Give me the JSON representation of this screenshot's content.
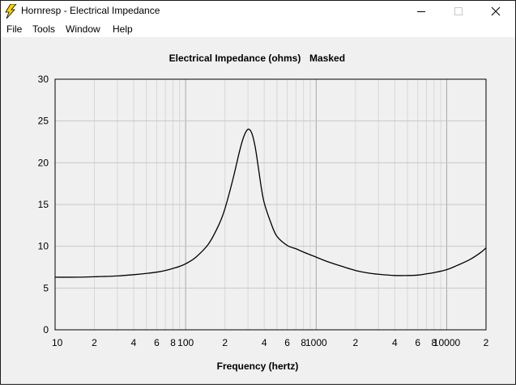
{
  "window": {
    "title": "Hornresp - Electrical Impedance",
    "icon": "lightning-bolt-icon"
  },
  "menu": [
    "File",
    "Tools",
    "Window",
    "Help"
  ],
  "chart_data": {
    "type": "line",
    "title": "Electrical Impedance (ohms)",
    "title_suffix": "Masked",
    "xlabel": "Frequency (hertz)",
    "ylabel": "",
    "xscale": "log",
    "xlim": [
      10,
      20000
    ],
    "ylim": [
      0,
      30
    ],
    "grid": true,
    "yticks": [
      0,
      5,
      10,
      15,
      20,
      25,
      30
    ],
    "xtick_labels": [
      {
        "value": 10,
        "label": "10"
      },
      {
        "value": 20,
        "label": "2"
      },
      {
        "value": 40,
        "label": "4"
      },
      {
        "value": 60,
        "label": "6"
      },
      {
        "value": 80,
        "label": "8"
      },
      {
        "value": 100,
        "label": "100"
      },
      {
        "value": 200,
        "label": "2"
      },
      {
        "value": 400,
        "label": "4"
      },
      {
        "value": 600,
        "label": "6"
      },
      {
        "value": 800,
        "label": "8"
      },
      {
        "value": 1000,
        "label": "1000"
      },
      {
        "value": 2000,
        "label": "2"
      },
      {
        "value": 4000,
        "label": "4"
      },
      {
        "value": 6000,
        "label": "6"
      },
      {
        "value": 8000,
        "label": "8"
      },
      {
        "value": 10000,
        "label": "10000"
      },
      {
        "value": 20000,
        "label": "2"
      }
    ],
    "series": [
      {
        "color": "#000000",
        "x": [
          10,
          15,
          20,
          30,
          40,
          50,
          60,
          70,
          80,
          90,
          100,
          120,
          150,
          180,
          200,
          230,
          260,
          280,
          300,
          320,
          340,
          360,
          380,
          400,
          450,
          500,
          600,
          700,
          800,
          1000,
          1200,
          1500,
          2000,
          2500,
          3000,
          4000,
          5000,
          6000,
          7000,
          8000,
          10000,
          12000,
          15000,
          18000,
          20000
        ],
        "y": [
          6.3,
          6.3,
          6.35,
          6.45,
          6.6,
          6.75,
          6.9,
          7.1,
          7.35,
          7.6,
          7.9,
          8.7,
          10.3,
          12.6,
          14.5,
          18.0,
          21.5,
          23.2,
          24.0,
          23.6,
          22.0,
          19.5,
          17.0,
          15.2,
          12.8,
          11.2,
          10.1,
          9.7,
          9.3,
          8.7,
          8.2,
          7.7,
          7.1,
          6.8,
          6.65,
          6.5,
          6.5,
          6.55,
          6.7,
          6.85,
          7.2,
          7.7,
          8.4,
          9.2,
          9.8
        ]
      }
    ]
  }
}
